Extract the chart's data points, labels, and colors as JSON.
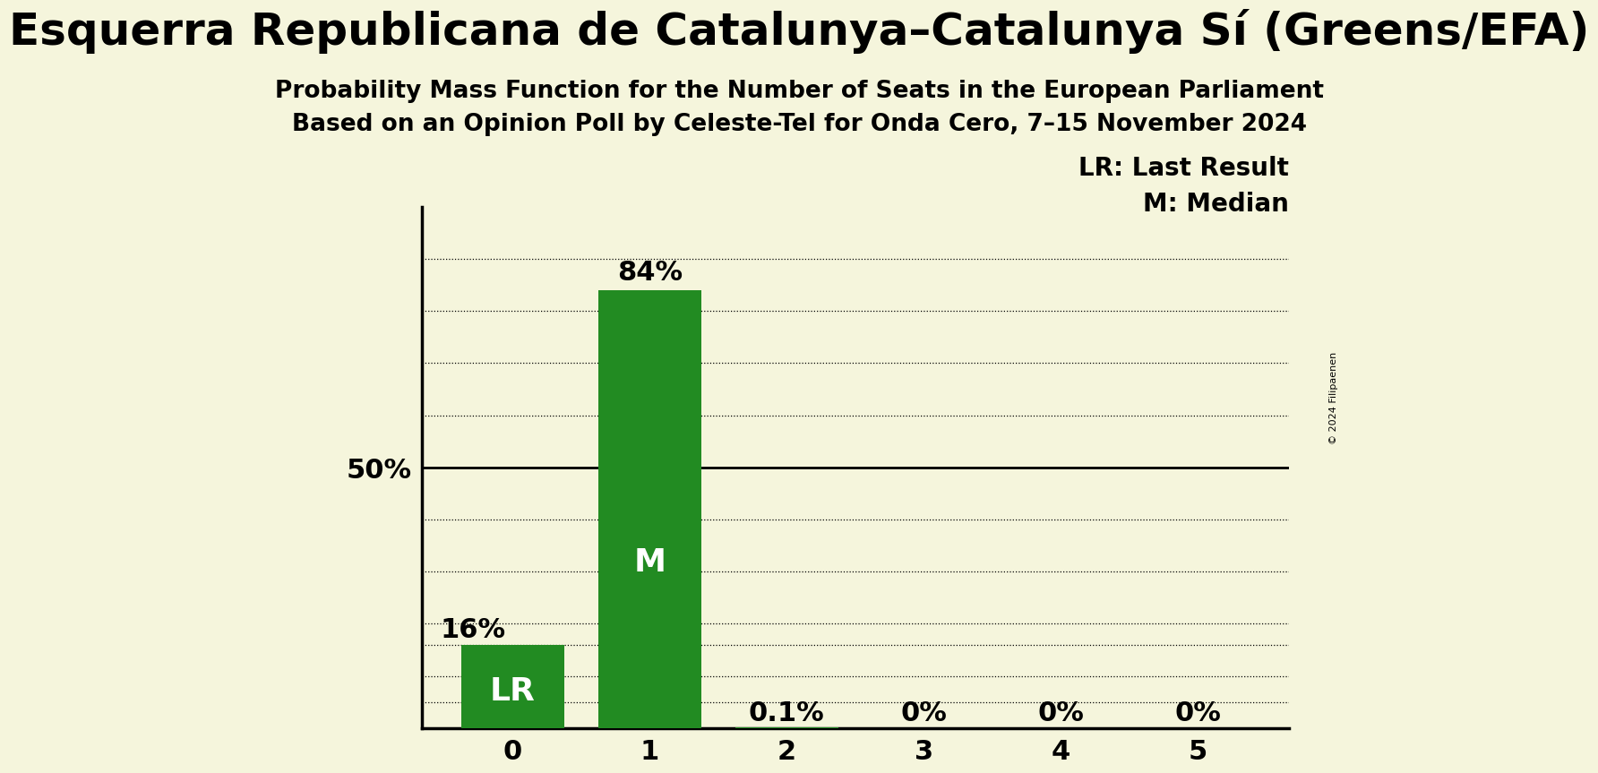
{
  "title": "Esquerra Republicana de Catalunya–Catalunya Sí (Greens/EFA)",
  "subtitle1": "Probability Mass Function for the Number of Seats in the European Parliament",
  "subtitle2": "Based on an Opinion Poll by Celeste-Tel for Onda Cero, 7–15 November 2024",
  "x_values": [
    0,
    1,
    2,
    3,
    4,
    5
  ],
  "y_values": [
    0.16,
    0.84,
    0.001,
    0.0,
    0.0,
    0.0
  ],
  "bar_labels": [
    "16%",
    "84%",
    "0.1%",
    "0%",
    "0%",
    "0%"
  ],
  "bar_color": "#228B22",
  "background_color": "#F5F5DC",
  "last_result": 0,
  "median": 1,
  "label_lr": "LR",
  "label_m": "M",
  "legend_lr": "LR: Last Result",
  "legend_m": "M: Median",
  "copyright": "© 2024 Filipaenen",
  "ylim": [
    0,
    1.0
  ],
  "ylabel_50": "50%",
  "title_fontsize": 36,
  "subtitle_fontsize": 19,
  "bar_label_fontsize": 22,
  "axis_fontsize": 22,
  "inner_label_fontsize": 26,
  "legend_fontsize": 20
}
